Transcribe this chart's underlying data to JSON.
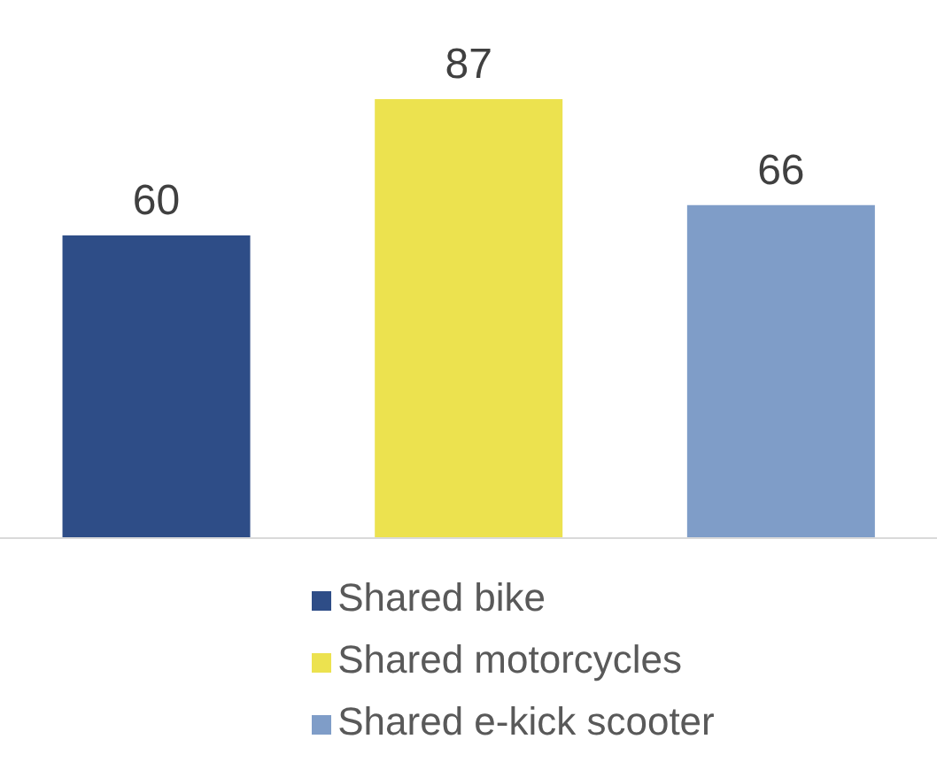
{
  "chart_data": {
    "type": "bar",
    "categories": [
      null,
      null,
      null
    ],
    "stacked": true,
    "series": [
      {
        "name": "Shared bike",
        "color": "#2e4d87",
        "values": [
          60,
          null,
          null
        ]
      },
      {
        "name": "Shared motorcycles",
        "color": "#ece24f",
        "values": [
          null,
          87,
          null
        ]
      },
      {
        "name": "Shared e-kick scooter",
        "color": "#7f9dc8",
        "values": [
          null,
          null,
          66
        ]
      }
    ],
    "data_labels": true,
    "legend": "bottom"
  }
}
